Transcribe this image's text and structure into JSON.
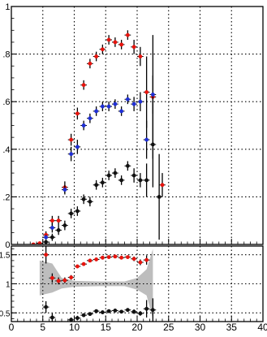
{
  "chart_data": [
    {
      "type": "scatter",
      "panel": "upper",
      "title": "",
      "xlabel": "",
      "ylabel": "",
      "xlim": [
        0,
        40
      ],
      "ylim": [
        0,
        1.0
      ],
      "grid": true,
      "yticks": [
        {
          "value": 0.0,
          "label": "0"
        },
        {
          "value": 0.2,
          "label": ".2"
        },
        {
          "value": 0.4,
          "label": ".4"
        },
        {
          "value": 0.6,
          "label": ".6"
        },
        {
          "value": 0.8,
          "label": ".8"
        },
        {
          "value": 1.0,
          "label": "1"
        }
      ],
      "series": [
        {
          "color": "#e8140e",
          "points": [
            {
              "x": 3.5,
              "y": 0.0,
              "xerr": 0.5,
              "yerr": 0.004
            },
            {
              "x": 4.5,
              "y": 0.005,
              "xerr": 0.5,
              "yerr": 0.006
            },
            {
              "x": 5.5,
              "y": 0.04,
              "xerr": 0.5,
              "yerr": 0.015
            },
            {
              "x": 6.5,
              "y": 0.1,
              "xerr": 0.5,
              "yerr": 0.02
            },
            {
              "x": 7.5,
              "y": 0.1,
              "xerr": 0.5,
              "yerr": 0.02
            },
            {
              "x": 8.5,
              "y": 0.24,
              "xerr": 0.5,
              "yerr": 0.025
            },
            {
              "x": 9.5,
              "y": 0.44,
              "xerr": 0.5,
              "yerr": 0.025
            },
            {
              "x": 10.5,
              "y": 0.55,
              "xerr": 0.5,
              "yerr": 0.025
            },
            {
              "x": 11.5,
              "y": 0.67,
              "xerr": 0.5,
              "yerr": 0.02
            },
            {
              "x": 12.5,
              "y": 0.76,
              "xerr": 0.5,
              "yerr": 0.02
            },
            {
              "x": 13.5,
              "y": 0.79,
              "xerr": 0.5,
              "yerr": 0.02
            },
            {
              "x": 14.5,
              "y": 0.82,
              "xerr": 0.5,
              "yerr": 0.02
            },
            {
              "x": 15.5,
              "y": 0.86,
              "xerr": 0.5,
              "yerr": 0.02
            },
            {
              "x": 16.5,
              "y": 0.85,
              "xerr": 0.5,
              "yerr": 0.02
            },
            {
              "x": 17.5,
              "y": 0.84,
              "xerr": 0.5,
              "yerr": 0.02
            },
            {
              "x": 18.5,
              "y": 0.88,
              "xerr": 0.5,
              "yerr": 0.02
            },
            {
              "x": 19.5,
              "y": 0.83,
              "xerr": 0.5,
              "yerr": 0.03
            },
            {
              "x": 20.5,
              "y": 0.79,
              "xerr": 0.5,
              "yerr": 0.04
            },
            {
              "x": 21.5,
              "y": 0.64,
              "xerr": 0.5,
              "yerr": 0.15
            },
            {
              "x": 22.5,
              "y": 0.62,
              "xerr": 0.5,
              "yerr": 0.26
            },
            {
              "x": 24.0,
              "y": 0.25,
              "xerr": 0.5,
              "yerr": 0.05
            }
          ]
        },
        {
          "color": "#1f2fd6",
          "points": [
            {
              "x": 5.5,
              "y": 0.03,
              "xerr": 0.5,
              "yerr": 0.01
            },
            {
              "x": 6.5,
              "y": 0.07,
              "xerr": 0.5,
              "yerr": 0.02
            },
            {
              "x": 8.5,
              "y": 0.23,
              "xerr": 0.5,
              "yerr": 0.02
            },
            {
              "x": 9.5,
              "y": 0.38,
              "xerr": 0.5,
              "yerr": 0.03
            },
            {
              "x": 10.5,
              "y": 0.41,
              "xerr": 0.5,
              "yerr": 0.03
            },
            {
              "x": 11.5,
              "y": 0.5,
              "xerr": 0.5,
              "yerr": 0.02
            },
            {
              "x": 12.5,
              "y": 0.53,
              "xerr": 0.5,
              "yerr": 0.02
            },
            {
              "x": 13.5,
              "y": 0.56,
              "xerr": 0.5,
              "yerr": 0.02
            },
            {
              "x": 14.5,
              "y": 0.58,
              "xerr": 0.5,
              "yerr": 0.02
            },
            {
              "x": 15.5,
              "y": 0.58,
              "xerr": 0.5,
              "yerr": 0.02
            },
            {
              "x": 16.5,
              "y": 0.59,
              "xerr": 0.5,
              "yerr": 0.02
            },
            {
              "x": 17.5,
              "y": 0.56,
              "xerr": 0.5,
              "yerr": 0.02
            },
            {
              "x": 18.5,
              "y": 0.61,
              "xerr": 0.5,
              "yerr": 0.02
            },
            {
              "x": 19.5,
              "y": 0.59,
              "xerr": 0.5,
              "yerr": 0.03
            },
            {
              "x": 20.5,
              "y": 0.6,
              "xerr": 0.5,
              "yerr": 0.04
            },
            {
              "x": 21.5,
              "y": 0.44,
              "xerr": 0.5,
              "yerr": 0.08
            },
            {
              "x": 22.5,
              "y": 0.63,
              "xerr": 0.5,
              "yerr": 0.08
            }
          ]
        },
        {
          "color": "#111111",
          "points": [
            {
              "x": 5.5,
              "y": 0.01,
              "xerr": 0.5,
              "yerr": 0.01
            },
            {
              "x": 6.5,
              "y": 0.03,
              "xerr": 0.5,
              "yerr": 0.015
            },
            {
              "x": 7.5,
              "y": 0.06,
              "xerr": 0.5,
              "yerr": 0.02
            },
            {
              "x": 8.5,
              "y": 0.08,
              "xerr": 0.5,
              "yerr": 0.02
            },
            {
              "x": 9.5,
              "y": 0.13,
              "xerr": 0.5,
              "yerr": 0.02
            },
            {
              "x": 10.5,
              "y": 0.14,
              "xerr": 0.5,
              "yerr": 0.02
            },
            {
              "x": 11.5,
              "y": 0.19,
              "xerr": 0.5,
              "yerr": 0.02
            },
            {
              "x": 12.5,
              "y": 0.18,
              "xerr": 0.5,
              "yerr": 0.02
            },
            {
              "x": 13.5,
              "y": 0.25,
              "xerr": 0.5,
              "yerr": 0.02
            },
            {
              "x": 14.5,
              "y": 0.26,
              "xerr": 0.5,
              "yerr": 0.02
            },
            {
              "x": 15.5,
              "y": 0.29,
              "xerr": 0.5,
              "yerr": 0.02
            },
            {
              "x": 16.5,
              "y": 0.3,
              "xerr": 0.5,
              "yerr": 0.02
            },
            {
              "x": 17.5,
              "y": 0.27,
              "xerr": 0.5,
              "yerr": 0.02
            },
            {
              "x": 18.5,
              "y": 0.33,
              "xerr": 0.5,
              "yerr": 0.02
            },
            {
              "x": 19.5,
              "y": 0.29,
              "xerr": 0.5,
              "yerr": 0.03
            },
            {
              "x": 20.5,
              "y": 0.27,
              "xerr": 0.5,
              "yerr": 0.03
            },
            {
              "x": 21.5,
              "y": 0.27,
              "xerr": 0.5,
              "yerr": 0.07
            },
            {
              "x": 22.5,
              "y": 0.42,
              "xerr": 0.5,
              "yerr": 0.18
            },
            {
              "x": 23.5,
              "y": 0.2,
              "xerr": 0.5,
              "yerr": 0.18
            }
          ]
        }
      ]
    },
    {
      "type": "scatter",
      "panel": "lower",
      "title": "",
      "xlabel": "",
      "ylabel": "",
      "xlim": [
        0,
        40
      ],
      "ylim": [
        0.35,
        1.65
      ],
      "grid": true,
      "xticks": [
        {
          "value": 0,
          "label": "0"
        },
        {
          "value": 5,
          "label": "5"
        },
        {
          "value": 10,
          "label": "10"
        },
        {
          "value": 15,
          "label": "15"
        },
        {
          "value": 20,
          "label": "20"
        },
        {
          "value": 25,
          "label": "25"
        },
        {
          "value": 30,
          "label": "30"
        },
        {
          "value": 35,
          "label": "35"
        },
        {
          "value": 40,
          "label": "40"
        }
      ],
      "yticks": [
        {
          "value": 0.5,
          "label": "0.5"
        },
        {
          "value": 1.0,
          "label": "1"
        },
        {
          "value": 1.5,
          "label": "1.5"
        }
      ],
      "band": {
        "color": "#bdbdbd",
        "points": [
          {
            "x": 4.5,
            "lo": 0.8,
            "hi": 1.4
          },
          {
            "x": 6.5,
            "lo": 0.85,
            "hi": 1.35
          },
          {
            "x": 8.0,
            "lo": 0.92,
            "hi": 1.1
          },
          {
            "x": 10.0,
            "lo": 0.95,
            "hi": 1.05
          },
          {
            "x": 14.0,
            "lo": 0.96,
            "hi": 1.04
          },
          {
            "x": 18.0,
            "lo": 0.96,
            "hi": 1.04
          },
          {
            "x": 20.0,
            "lo": 0.9,
            "hi": 1.1
          },
          {
            "x": 21.5,
            "lo": 0.8,
            "hi": 1.25
          },
          {
            "x": 22.5,
            "lo": 0.4,
            "hi": 1.6
          }
        ]
      },
      "series": [
        {
          "color": "#e8140e",
          "points": [
            {
              "x": 5.5,
              "y": 1.5,
              "xerr": 0.5,
              "yerr": 0.15
            },
            {
              "x": 6.5,
              "y": 1.1,
              "xerr": 0.5,
              "yerr": 0.08
            },
            {
              "x": 7.5,
              "y": 1.05,
              "xerr": 0.5,
              "yerr": 0.06
            },
            {
              "x": 8.5,
              "y": 1.06,
              "xerr": 0.5,
              "yerr": 0.05
            },
            {
              "x": 9.5,
              "y": 1.11,
              "xerr": 0.5,
              "yerr": 0.04
            },
            {
              "x": 10.5,
              "y": 1.3,
              "xerr": 0.5,
              "yerr": 0.03
            },
            {
              "x": 11.5,
              "y": 1.34,
              "xerr": 0.5,
              "yerr": 0.03
            },
            {
              "x": 12.5,
              "y": 1.4,
              "xerr": 0.5,
              "yerr": 0.03
            },
            {
              "x": 13.5,
              "y": 1.42,
              "xerr": 0.5,
              "yerr": 0.03
            },
            {
              "x": 14.5,
              "y": 1.45,
              "xerr": 0.5,
              "yerr": 0.03
            },
            {
              "x": 15.5,
              "y": 1.46,
              "xerr": 0.5,
              "yerr": 0.03
            },
            {
              "x": 16.5,
              "y": 1.47,
              "xerr": 0.5,
              "yerr": 0.03
            },
            {
              "x": 17.5,
              "y": 1.45,
              "xerr": 0.5,
              "yerr": 0.03
            },
            {
              "x": 18.5,
              "y": 1.46,
              "xerr": 0.5,
              "yerr": 0.03
            },
            {
              "x": 19.5,
              "y": 1.43,
              "xerr": 0.5,
              "yerr": 0.04
            },
            {
              "x": 20.5,
              "y": 1.37,
              "xerr": 0.5,
              "yerr": 0.05
            },
            {
              "x": 21.5,
              "y": 1.41,
              "xerr": 0.5,
              "yerr": 0.08
            }
          ]
        },
        {
          "color": "#111111",
          "points": [
            {
              "x": 5.5,
              "y": 0.6,
              "xerr": 0.5,
              "yerr": 0.1
            },
            {
              "x": 6.5,
              "y": 0.42,
              "xerr": 0.5,
              "yerr": 0.07
            },
            {
              "x": 9.5,
              "y": 0.38,
              "xerr": 0.5,
              "yerr": 0.04
            },
            {
              "x": 10.5,
              "y": 0.41,
              "xerr": 0.5,
              "yerr": 0.04
            },
            {
              "x": 11.5,
              "y": 0.46,
              "xerr": 0.5,
              "yerr": 0.03
            },
            {
              "x": 12.5,
              "y": 0.48,
              "xerr": 0.5,
              "yerr": 0.03
            },
            {
              "x": 13.5,
              "y": 0.53,
              "xerr": 0.5,
              "yerr": 0.03
            },
            {
              "x": 14.5,
              "y": 0.51,
              "xerr": 0.5,
              "yerr": 0.03
            },
            {
              "x": 15.5,
              "y": 0.53,
              "xerr": 0.5,
              "yerr": 0.03
            },
            {
              "x": 16.5,
              "y": 0.54,
              "xerr": 0.5,
              "yerr": 0.03
            },
            {
              "x": 17.5,
              "y": 0.52,
              "xerr": 0.5,
              "yerr": 0.03
            },
            {
              "x": 18.5,
              "y": 0.55,
              "xerr": 0.5,
              "yerr": 0.03
            },
            {
              "x": 19.5,
              "y": 0.52,
              "xerr": 0.5,
              "yerr": 0.04
            },
            {
              "x": 20.5,
              "y": 0.49,
              "xerr": 0.5,
              "yerr": 0.04
            },
            {
              "x": 21.5,
              "y": 0.57,
              "xerr": 0.5,
              "yerr": 0.15
            },
            {
              "x": 22.5,
              "y": 0.55,
              "xerr": 0.5,
              "yerr": 0.2
            }
          ]
        }
      ]
    }
  ]
}
